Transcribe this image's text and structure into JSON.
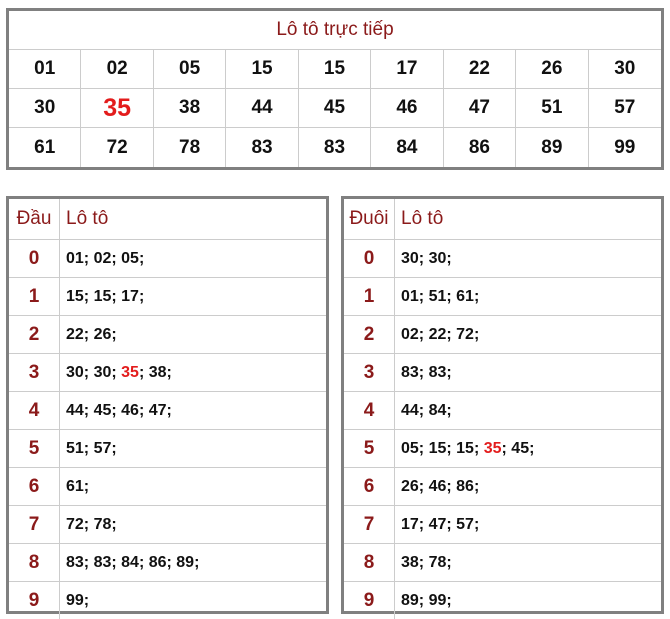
{
  "top": {
    "title": "Lô tô trực tiếp",
    "numbers": [
      "01",
      "02",
      "05",
      "15",
      "15",
      "17",
      "22",
      "26",
      "30",
      "30",
      "35",
      "38",
      "44",
      "45",
      "46",
      "47",
      "51",
      "57",
      "61",
      "72",
      "78",
      "83",
      "83",
      "84",
      "86",
      "89",
      "99"
    ],
    "highlight": "35",
    "highlight_color": "#e31c1c"
  },
  "dau": {
    "header_key": "Đầu",
    "header_val": "Lô tô",
    "rows": [
      {
        "key": "0",
        "parts": [
          {
            "t": "01; 02; 05;"
          }
        ]
      },
      {
        "key": "1",
        "parts": [
          {
            "t": "15; 15; 17;"
          }
        ]
      },
      {
        "key": "2",
        "parts": [
          {
            "t": "22; 26;"
          }
        ]
      },
      {
        "key": "3",
        "parts": [
          {
            "t": "30; 30; "
          },
          {
            "t": "35",
            "hl": true
          },
          {
            "t": "; 38;"
          }
        ]
      },
      {
        "key": "4",
        "parts": [
          {
            "t": "44; 45; 46; 47;"
          }
        ]
      },
      {
        "key": "5",
        "parts": [
          {
            "t": "51; 57;"
          }
        ]
      },
      {
        "key": "6",
        "parts": [
          {
            "t": "61;"
          }
        ]
      },
      {
        "key": "7",
        "parts": [
          {
            "t": "72; 78;"
          }
        ]
      },
      {
        "key": "8",
        "parts": [
          {
            "t": "83; 83; 84; 86; 89;"
          }
        ]
      },
      {
        "key": "9",
        "parts": [
          {
            "t": "99;"
          }
        ]
      }
    ]
  },
  "duoi": {
    "header_key": "Đuôi",
    "header_val": "Lô tô",
    "rows": [
      {
        "key": "0",
        "parts": [
          {
            "t": "30; 30;"
          }
        ]
      },
      {
        "key": "1",
        "parts": [
          {
            "t": "01; 51; 61;"
          }
        ]
      },
      {
        "key": "2",
        "parts": [
          {
            "t": "02; 22; 72;"
          }
        ]
      },
      {
        "key": "3",
        "parts": [
          {
            "t": "83; 83;"
          }
        ]
      },
      {
        "key": "4",
        "parts": [
          {
            "t": "44; 84;"
          }
        ]
      },
      {
        "key": "5",
        "parts": [
          {
            "t": "05; 15; 15; "
          },
          {
            "t": "35",
            "hl": true
          },
          {
            "t": "; 45;"
          }
        ]
      },
      {
        "key": "6",
        "parts": [
          {
            "t": "26; 46; 86;"
          }
        ]
      },
      {
        "key": "7",
        "parts": [
          {
            "t": "17; 47; 57;"
          }
        ]
      },
      {
        "key": "8",
        "parts": [
          {
            "t": "38; 78;"
          }
        ]
      },
      {
        "key": "9",
        "parts": [
          {
            "t": "89; 99;"
          }
        ]
      }
    ]
  }
}
